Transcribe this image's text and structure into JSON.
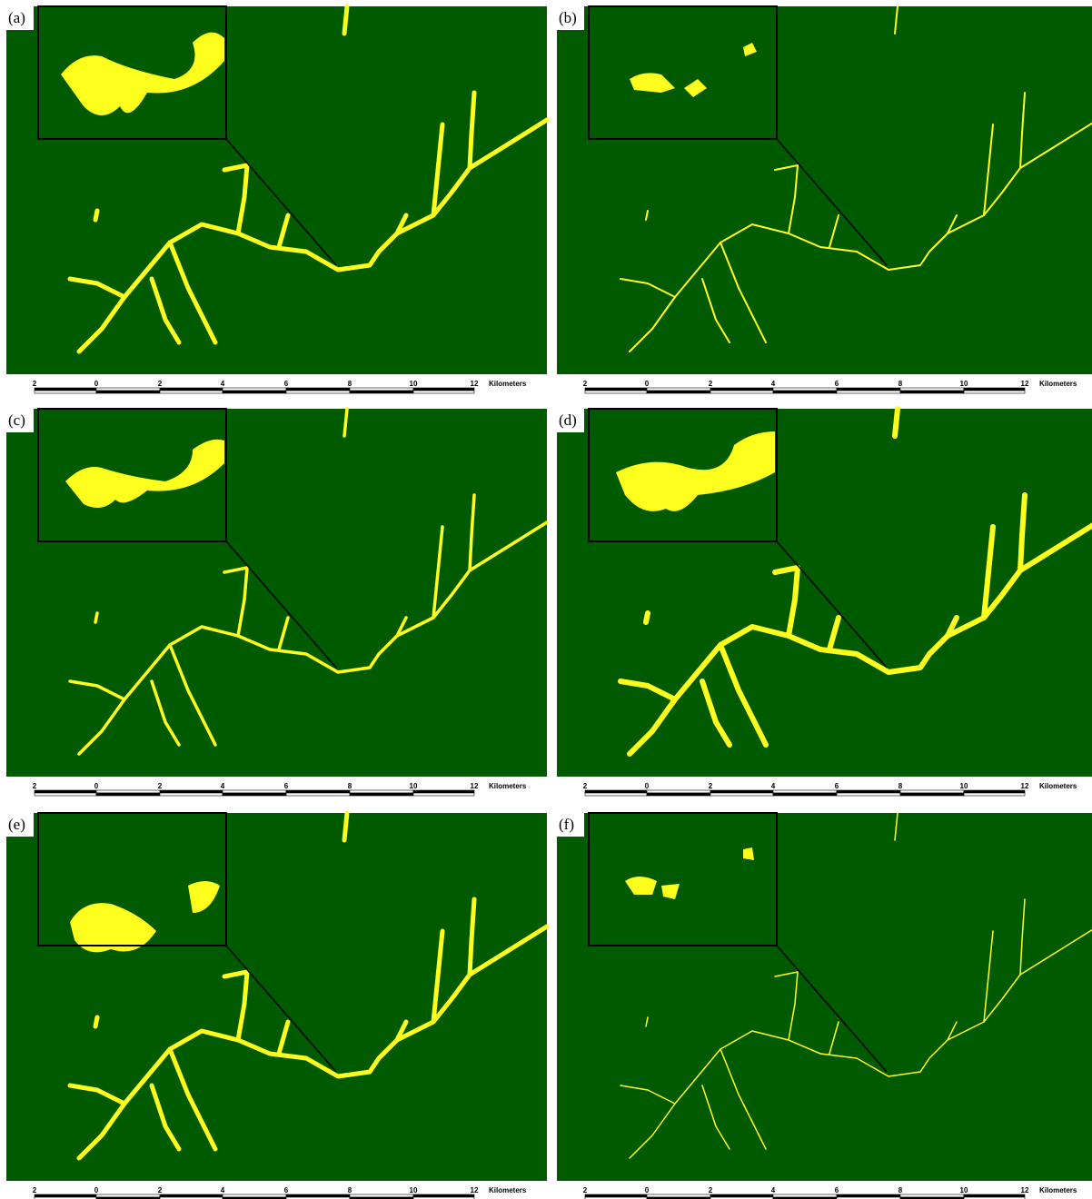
{
  "panels": [
    {
      "label": "(a)"
    },
    {
      "label": "(b)"
    },
    {
      "label": "(c)"
    },
    {
      "label": "(d)"
    },
    {
      "label": "(e)"
    },
    {
      "label": "(f)"
    }
  ],
  "scale_bar": {
    "ticks": [
      "2",
      "0",
      "2",
      "4",
      "6",
      "8",
      "10",
      "12"
    ],
    "unit": "Kilometers"
  }
}
